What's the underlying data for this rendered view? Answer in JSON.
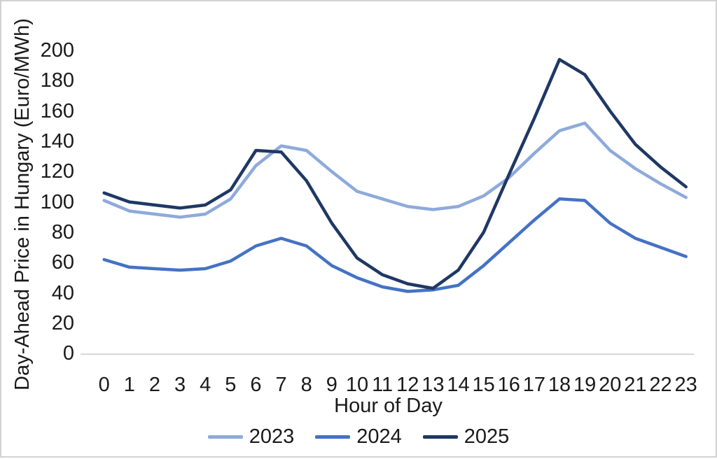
{
  "chart_data": {
    "type": "line",
    "title": "",
    "xlabel": "Hour of Day",
    "ylabel": "Day-Ahead Price in Hungary (Euro/MWh)",
    "categories": [
      0,
      1,
      2,
      3,
      4,
      5,
      6,
      7,
      8,
      9,
      10,
      11,
      12,
      13,
      14,
      15,
      16,
      17,
      18,
      19,
      20,
      21,
      22,
      23
    ],
    "x_ticks": [
      0,
      1,
      2,
      3,
      4,
      5,
      6,
      7,
      8,
      9,
      10,
      11,
      12,
      13,
      14,
      15,
      16,
      17,
      18,
      19,
      20,
      21,
      22,
      23
    ],
    "y_ticks": [
      0,
      20,
      40,
      60,
      80,
      100,
      120,
      140,
      160,
      180,
      200
    ],
    "ylim": [
      0,
      200
    ],
    "xlim": [
      0,
      23
    ],
    "grid": false,
    "legend_position": "bottom",
    "series": [
      {
        "name": "2023",
        "color": "#8EAADB",
        "values": [
          101,
          94,
          92,
          90,
          92,
          102,
          124,
          137,
          134,
          120,
          107,
          102,
          97,
          95,
          97,
          104,
          116,
          132,
          147,
          152,
          134,
          122,
          112,
          103
        ]
      },
      {
        "name": "2024",
        "color": "#4472C4",
        "values": [
          62,
          57,
          56,
          55,
          56,
          61,
          71,
          76,
          71,
          58,
          50,
          44,
          41,
          42,
          45,
          58,
          73,
          88,
          102,
          101,
          86,
          76,
          70,
          64
        ]
      },
      {
        "name": "2025",
        "color": "#1F3864",
        "values": [
          106,
          100,
          98,
          96,
          98,
          108,
          134,
          133,
          114,
          86,
          63,
          52,
          46,
          43,
          55,
          80,
          118,
          155,
          194,
          184,
          160,
          138,
          123,
          110
        ]
      }
    ]
  },
  "colors": {
    "axis_line": "#d6d6d6",
    "text": "#1a1a1a",
    "frame_border": "#d2d2d2"
  }
}
